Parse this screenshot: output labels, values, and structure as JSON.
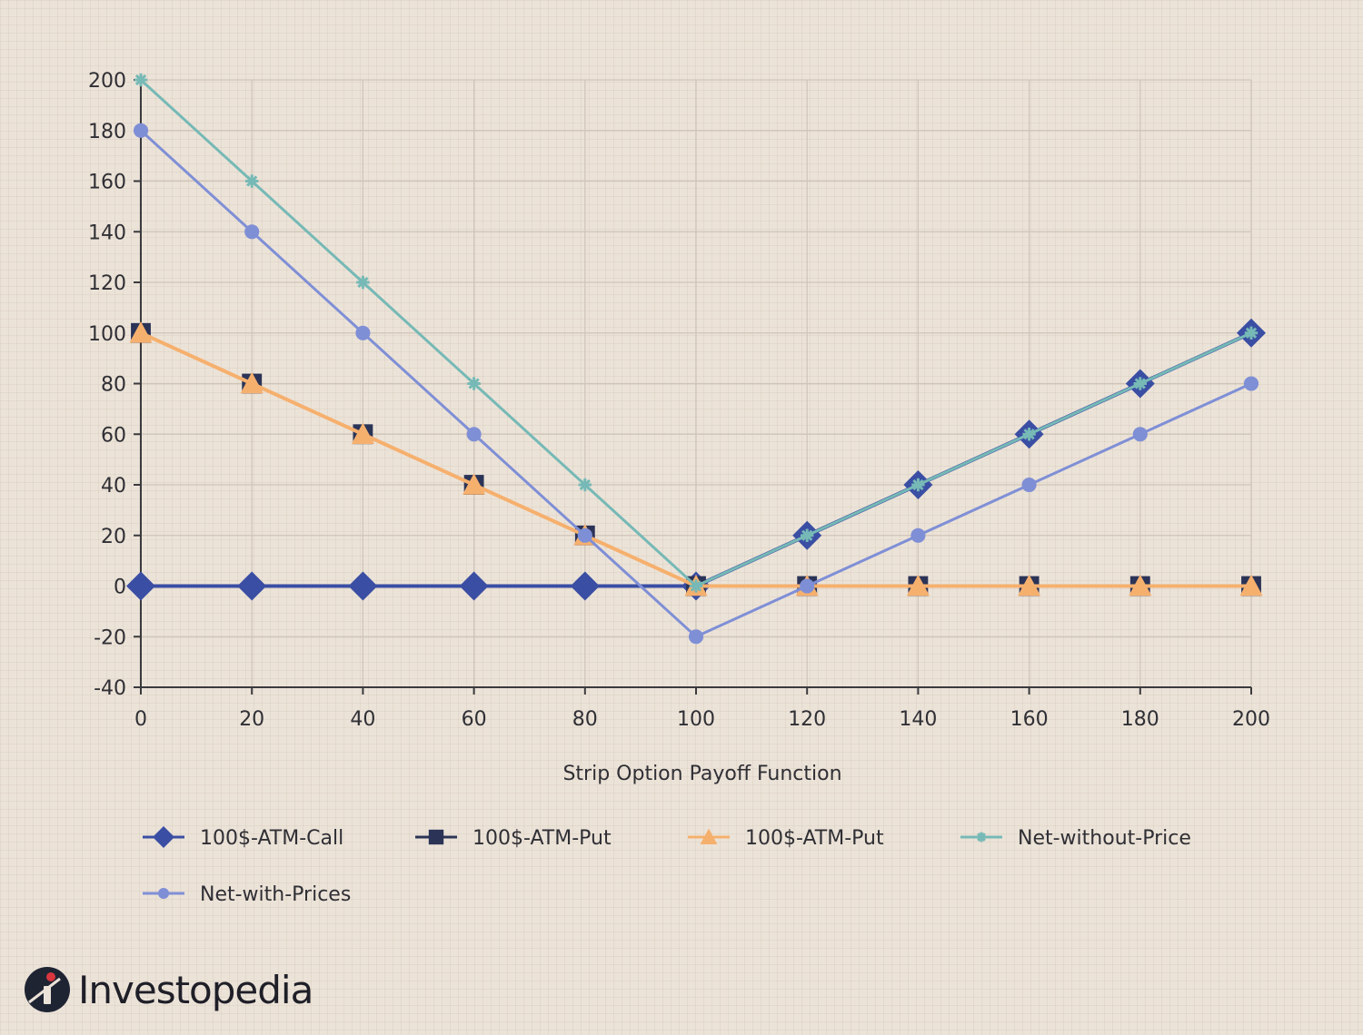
{
  "chart_data": {
    "type": "line",
    "title": "",
    "xlabel": "Strip Option Payoff Function",
    "ylabel": "",
    "x": [
      0,
      20,
      40,
      60,
      80,
      100,
      120,
      140,
      160,
      180,
      200
    ],
    "xlim": [
      0,
      200
    ],
    "ylim": [
      -40,
      200
    ],
    "xticks": [
      0,
      20,
      40,
      60,
      80,
      100,
      120,
      140,
      160,
      180,
      200
    ],
    "yticks": [
      -40,
      -20,
      0,
      20,
      40,
      60,
      80,
      100,
      120,
      140,
      160,
      180,
      200
    ],
    "grid": true,
    "legend_position": "bottom",
    "series": [
      {
        "name": "100$-ATM-Call",
        "marker": "diamond",
        "color": "#3a4ea3",
        "values": [
          0,
          0,
          0,
          0,
          0,
          0,
          20,
          40,
          60,
          80,
          100
        ]
      },
      {
        "name": "100$-ATM-Put",
        "marker": "square",
        "color": "#2b3457",
        "values": [
          100,
          80,
          60,
          40,
          20,
          0,
          0,
          0,
          0,
          0,
          0
        ]
      },
      {
        "name": "100$-ATM-Put",
        "marker": "triangle",
        "color": "#f6b06e",
        "values": [
          100,
          80,
          60,
          40,
          20,
          0,
          0,
          0,
          0,
          0,
          0
        ]
      },
      {
        "name": "Net-without-Price",
        "marker": "asterisk",
        "color": "#76b9b6",
        "values": [
          200,
          160,
          120,
          80,
          40,
          0,
          20,
          40,
          60,
          80,
          100
        ]
      },
      {
        "name": "Net-with-Prices",
        "marker": "circle",
        "color": "#7f8fd6",
        "values": [
          180,
          140,
          100,
          60,
          20,
          -20,
          0,
          20,
          40,
          60,
          80
        ]
      }
    ]
  },
  "branding": {
    "logo_text": "Investopedia",
    "logo_icon": "investopedia-i-icon"
  }
}
